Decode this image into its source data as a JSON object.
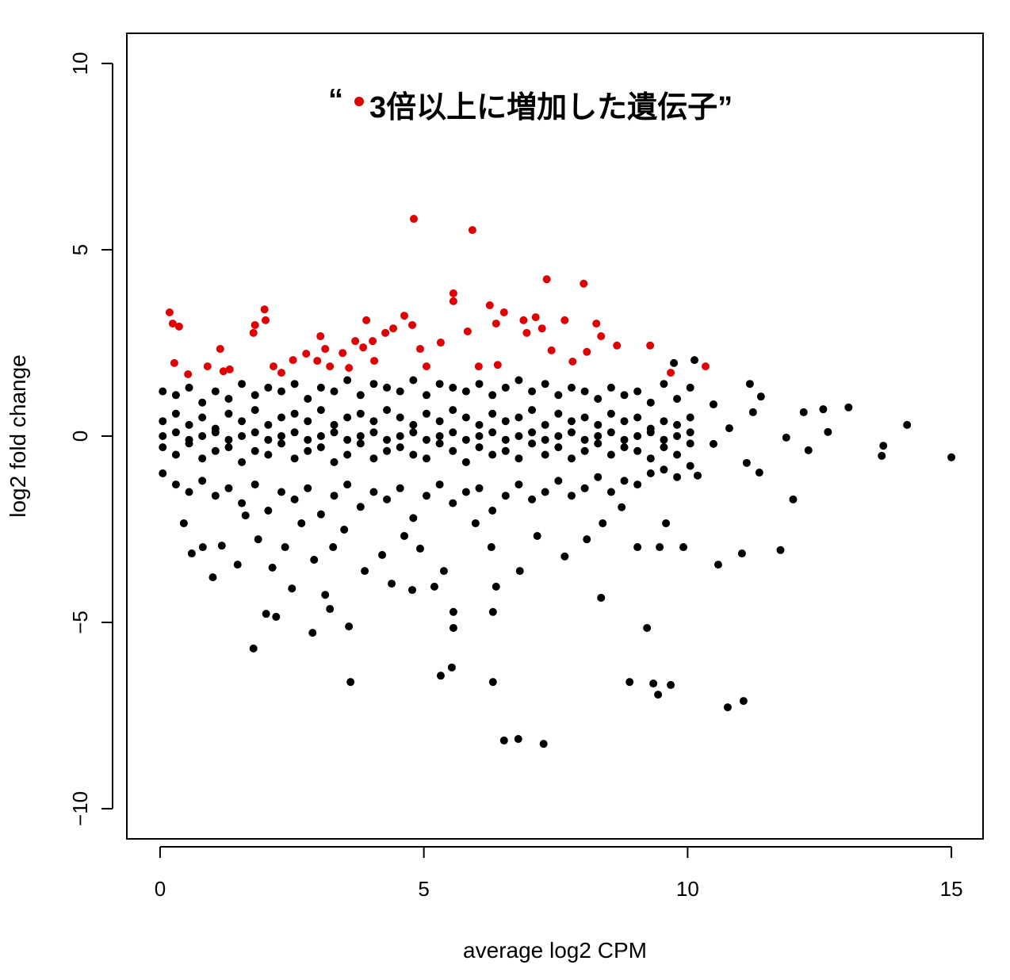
{
  "chart_data": {
    "type": "scatter",
    "xlabel": "average log2 CPM",
    "ylabel": "log2 fold change",
    "annotation": {
      "open_quote": "“",
      "text": "3倍以上に増加した遺伝子”",
      "dot_color": "#e00000"
    },
    "xlim": [
      -0.63,
      15.6
    ],
    "ylim": [
      -10.81,
      10.81
    ],
    "xticks": [
      0,
      5,
      10,
      15
    ],
    "yticks": [
      {
        "value": -10,
        "label": "−10"
      },
      {
        "value": -5,
        "label": "−5"
      },
      0,
      5,
      10
    ],
    "series": [
      {
        "color": "#000000",
        "x": [
          0.05,
          0.3,
          0.55,
          0.8,
          1.05,
          1.3,
          1.55,
          1.8,
          2.05,
          2.3,
          2.55,
          2.8,
          3.05,
          3.3,
          3.55,
          3.8,
          4.05,
          4.3,
          4.55,
          4.8,
          5.05,
          5.3,
          5.55,
          5.8,
          6.05,
          6.3,
          6.55,
          6.8,
          7.05,
          7.3,
          7.55,
          7.8,
          8.05,
          8.3,
          8.55,
          8.8,
          9.05,
          9.3,
          9.55,
          9.8,
          10.05,
          0.05,
          0.3,
          0.55,
          0.8,
          1.05,
          1.3,
          1.55,
          1.8,
          2.05,
          2.3,
          2.55,
          2.8,
          3.05,
          3.3,
          3.55,
          3.8,
          4.05,
          4.3,
          4.55,
          4.8,
          5.05,
          5.3,
          5.55,
          5.8,
          6.05,
          6.3,
          6.55,
          6.8,
          7.05,
          7.3,
          7.55,
          7.8,
          8.05,
          8.3,
          8.55,
          8.8,
          9.05,
          9.3,
          9.55,
          9.8,
          10.05,
          0.05,
          0.3,
          0.55,
          0.8,
          1.05,
          1.3,
          1.55,
          1.8,
          2.05,
          2.3,
          2.55,
          2.8,
          3.05,
          3.3,
          3.55,
          3.8,
          4.05,
          4.3,
          4.55,
          4.8,
          5.05,
          5.3,
          5.55,
          5.8,
          6.05,
          6.3,
          6.55,
          6.8,
          7.05,
          7.3,
          7.55,
          7.8,
          8.05,
          8.3,
          8.55,
          8.8,
          9.05,
          9.3,
          9.55,
          9.8,
          10.05,
          0.05,
          0.3,
          0.55,
          0.8,
          1.05,
          1.3,
          1.55,
          1.8,
          2.05,
          2.3,
          2.55,
          2.8,
          3.05,
          3.3,
          3.55,
          3.8,
          4.05,
          4.3,
          4.55,
          4.8,
          5.05,
          5.3,
          5.55,
          5.8,
          6.05,
          6.3,
          6.55,
          6.8,
          7.05,
          7.3,
          7.55,
          7.8,
          8.05,
          8.3,
          8.55,
          8.8,
          9.05,
          9.3,
          9.55,
          9.8,
          10.05,
          0.05,
          0.3,
          0.55,
          0.8,
          1.05,
          1.3,
          1.55,
          1.8,
          2.05,
          2.3,
          2.55,
          2.8,
          3.05,
          3.3,
          3.55,
          3.8,
          4.05,
          4.3,
          4.55,
          4.8,
          5.05,
          5.3,
          5.55,
          5.8,
          6.05,
          6.3,
          6.55,
          6.8,
          7.05,
          7.3,
          7.55,
          7.8,
          8.05,
          8.3,
          8.55,
          8.8,
          9.05,
          9.3,
          9.55,
          9.8,
          10.05,
          0.6,
          1.0,
          1.77,
          2.01,
          2.2,
          2.5,
          2.89,
          3.13,
          3.22,
          3.58,
          3.61,
          4.78,
          5.2,
          5.32,
          5.53,
          5.56,
          5.56,
          6.31,
          6.31,
          6.37,
          6.52,
          6.79,
          7.27,
          8.36,
          8.9,
          9.23,
          9.35,
          9.44,
          9.68,
          10.58,
          10.76,
          11.03,
          11.06,
          11.76,
          12.0,
          9.92,
          9.05,
          9.47,
          15.0,
          14.16,
          13.68,
          13.71,
          13.05,
          12.57,
          12.66,
          12.2,
          12.29,
          11.87,
          11.36,
          11.12,
          11.18,
          10.13,
          9.74,
          0.45,
          0.81,
          1.17,
          1.47,
          1.62,
          1.86,
          2.13,
          2.37,
          2.68,
          2.92,
          3.28,
          3.49,
          3.88,
          4.21,
          4.39,
          4.63,
          4.93,
          5.38,
          5.98,
          6.28,
          6.82,
          7.15,
          7.67,
          8.09,
          8.39,
          8.75,
          9.59,
          10.19,
          10.49,
          10.79,
          11.24,
          11.39,
          10.49
        ],
        "y": [
          1.2,
          1.1,
          1.3,
          0.9,
          1.2,
          1.0,
          1.4,
          1.1,
          1.3,
          1.2,
          1.4,
          1.0,
          1.3,
          1.2,
          1.5,
          1.1,
          1.4,
          1.3,
          1.2,
          1.5,
          1.1,
          1.4,
          1.3,
          1.2,
          1.4,
          1.1,
          1.3,
          1.5,
          1.2,
          1.4,
          1.1,
          1.3,
          1.2,
          1.0,
          1.3,
          1.1,
          1.2,
          0.9,
          1.4,
          1.0,
          1.3,
          0.4,
          0.6,
          0.3,
          0.5,
          0.2,
          0.6,
          0.4,
          0.7,
          0.3,
          0.5,
          0.6,
          0.4,
          0.7,
          0.3,
          0.5,
          0.6,
          0.4,
          0.7,
          0.5,
          0.3,
          0.6,
          0.4,
          0.7,
          0.5,
          0.3,
          0.6,
          0.4,
          0.5,
          0.7,
          0.3,
          0.6,
          0.4,
          0.5,
          0.3,
          0.6,
          0.4,
          0.5,
          0.2,
          0.4,
          0.3,
          0.5,
          -0.3,
          -0.5,
          -0.2,
          -0.6,
          -0.4,
          -0.3,
          -0.7,
          -0.4,
          -0.5,
          -0.2,
          -0.6,
          -0.4,
          -0.3,
          -0.7,
          -0.5,
          -0.2,
          -0.6,
          -0.4,
          -0.3,
          -0.5,
          -0.6,
          -0.2,
          -0.4,
          -0.7,
          -0.3,
          -0.5,
          -0.4,
          -0.6,
          -0.2,
          -0.5,
          -0.3,
          -0.6,
          -0.4,
          -0.2,
          -0.5,
          -0.3,
          -0.4,
          -0.6,
          -0.3,
          -0.5,
          -0.2,
          -1.0,
          -1.3,
          -1.5,
          -1.2,
          -1.6,
          -1.4,
          -1.8,
          -1.3,
          -2.0,
          -1.5,
          -1.7,
          -1.4,
          -2.1,
          -1.6,
          -1.3,
          -1.9,
          -1.5,
          -1.7,
          -1.4,
          -2.2,
          -1.6,
          -1.3,
          -1.8,
          -1.5,
          -1.4,
          -2.0,
          -1.6,
          -1.3,
          -1.7,
          -1.5,
          -1.2,
          -1.6,
          -1.4,
          -1.1,
          -1.5,
          -1.2,
          -1.3,
          -1.0,
          -0.9,
          -1.1,
          -0.8,
          0.0,
          0.1,
          -0.1,
          0.0,
          0.1,
          -0.1,
          0.0,
          0.1,
          -0.1,
          0.0,
          0.1,
          -0.1,
          0.0,
          0.1,
          -0.1,
          0.0,
          0.1,
          -0.1,
          0.0,
          0.1,
          -0.1,
          0.0,
          0.1,
          -0.1,
          0.0,
          0.1,
          -0.1,
          0.0,
          0.1,
          -0.1,
          0.0,
          0.1,
          -0.1,
          0.0,
          0.1,
          -0.1,
          0.0,
          0.1,
          -0.1,
          0.0,
          0.1,
          -3.15,
          -3.79,
          -5.7,
          -4.77,
          -4.85,
          -4.09,
          -5.28,
          -4.26,
          -4.64,
          -5.11,
          -6.6,
          -4.13,
          -4.04,
          -6.43,
          -6.21,
          -4.72,
          -5.15,
          -4.72,
          -6.6,
          -4.04,
          -8.17,
          -8.13,
          -8.26,
          -4.34,
          -6.6,
          -5.15,
          -6.64,
          -6.94,
          -6.68,
          -3.45,
          -7.28,
          -3.15,
          -7.11,
          -3.06,
          -1.7,
          -2.98,
          -2.98,
          -2.98,
          -0.57,
          0.3,
          -0.53,
          -0.26,
          0.77,
          0.72,
          0.11,
          0.64,
          -0.38,
          -0.04,
          -0.98,
          -0.72,
          1.4,
          2.04,
          1.96,
          -2.34,
          -2.98,
          -2.94,
          -3.45,
          -2.13,
          -2.77,
          -3.53,
          -2.98,
          -2.34,
          -3.32,
          -2.98,
          -2.51,
          -3.62,
          -3.19,
          -3.96,
          -2.68,
          -3.02,
          -3.62,
          -2.34,
          -2.98,
          -3.62,
          -2.68,
          -3.23,
          -2.77,
          -2.34,
          -1.91,
          -2.34,
          -1.06,
          -0.21,
          0.21,
          0.64,
          1.06,
          0.85
        ]
      },
      {
        "color": "#e00000",
        "x": [
          0.18,
          0.24,
          0.36,
          0.27,
          0.53,
          0.9,
          1.2,
          1.14,
          1.32,
          1.77,
          1.8,
          1.98,
          2.0,
          2.15,
          2.3,
          2.52,
          2.77,
          2.98,
          3.04,
          3.13,
          3.22,
          3.46,
          3.58,
          3.7,
          3.85,
          3.91,
          4.03,
          4.06,
          4.27,
          4.42,
          4.63,
          4.78,
          4.81,
          4.93,
          5.05,
          5.32,
          5.56,
          5.56,
          5.83,
          5.92,
          6.04,
          6.25,
          6.37,
          6.52,
          6.4,
          6.89,
          6.95,
          7.12,
          7.24,
          7.33,
          7.42,
          7.67,
          7.82,
          8.03,
          8.09,
          8.27,
          8.36,
          8.66,
          9.29,
          9.68,
          10.34
        ],
        "y": [
          3.32,
          3.02,
          2.94,
          1.96,
          1.66,
          1.87,
          1.74,
          2.34,
          1.79,
          2.77,
          2.98,
          3.4,
          3.11,
          1.87,
          1.7,
          2.04,
          2.21,
          2.02,
          2.68,
          2.34,
          1.87,
          2.23,
          1.83,
          2.55,
          2.38,
          3.11,
          2.55,
          2.02,
          2.77,
          2.89,
          3.23,
          2.98,
          5.83,
          2.34,
          1.87,
          2.51,
          3.83,
          3.62,
          2.81,
          5.53,
          1.87,
          3.51,
          3.02,
          3.32,
          1.91,
          3.11,
          2.77,
          3.19,
          2.89,
          4.21,
          2.3,
          3.11,
          2.0,
          4.09,
          2.26,
          3.02,
          2.68,
          2.43,
          2.43,
          1.7,
          1.87
        ]
      }
    ]
  }
}
